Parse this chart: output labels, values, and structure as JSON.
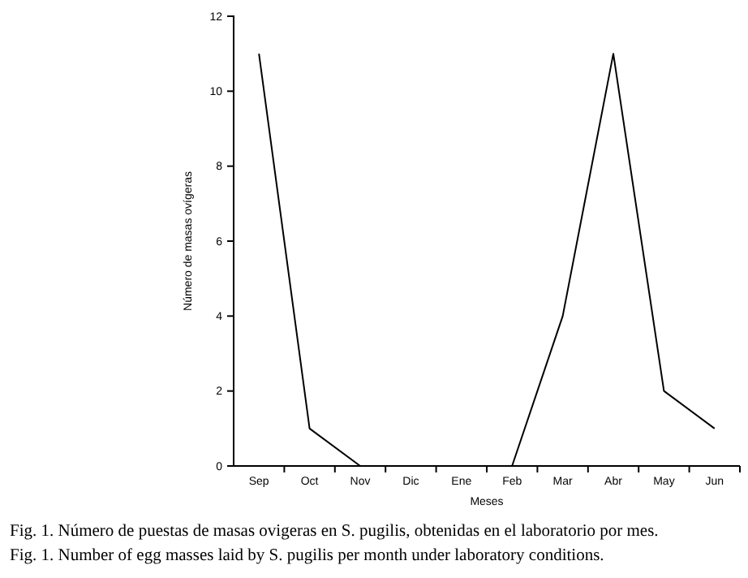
{
  "chart_data": {
    "type": "line",
    "xlabel": "Meses",
    "ylabel": "Número de masas ovígeras",
    "categories": [
      "Sep",
      "Oct",
      "Nov",
      "Dic",
      "Ene",
      "Feb",
      "Mar",
      "Abr",
      "May",
      "Jun"
    ],
    "series": [
      {
        "color": "#000000",
        "values": [
          11,
          1,
          0,
          0,
          0,
          0,
          4,
          11,
          2,
          1
        ]
      }
    ],
    "ylim": [
      0,
      12
    ],
    "yticks": [
      0,
      2,
      4,
      6,
      8,
      10,
      12
    ],
    "grid": false,
    "marker": "none",
    "line_style": "solid",
    "annotations": [
      "Fig. 1. Número de puestas de masas ovigeras en S. pugilis, obtenidas en el laboratorio por mes.",
      "Fig. 1. Number of egg masses laid by S. pugilis per month under laboratory conditions."
    ]
  }
}
